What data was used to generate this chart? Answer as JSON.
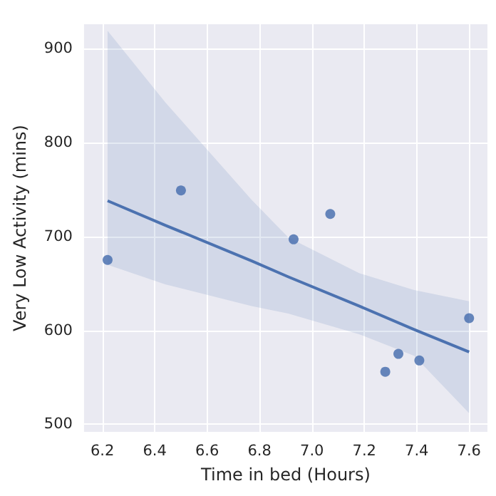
{
  "chart_data": {
    "type": "scatter",
    "xlabel": "Time in bed (Hours)",
    "ylabel": "Very Low Activity (mins)",
    "xlim": [
      6.13,
      7.67
    ],
    "xticks": [
      6.2,
      6.4,
      6.6,
      6.8,
      {
        "value": 7,
        "label": "7.0"
      },
      7.2,
      7.4,
      7.6
    ],
    "ylim": [
      492,
      926
    ],
    "yticks": [
      500,
      600,
      700,
      800,
      900
    ],
    "grid": true,
    "series": [
      {
        "color": "#4c72b0",
        "marker": "circle",
        "x": [
          6.22,
          6.5,
          6.93,
          7.07,
          7.28,
          7.33,
          7.41,
          7.6
        ],
        "values": [
          675,
          749,
          697,
          724,
          556,
          575,
          568,
          613
        ]
      },
      {
        "type": "line",
        "marker": "none",
        "color": "#4c72b0",
        "x": [
          6.22,
          6.44,
          6.77,
          6.91,
          7.18,
          7.39,
          7.6
        ],
        "values": [
          738,
          712,
          674,
          657,
          626,
          601,
          577
        ],
        "lower": [
          670,
          649,
          626,
          618,
          596,
          573,
          512
        ],
        "upper": [
          919,
          843,
          739,
          699,
          661,
          643,
          631
        ]
      }
    ]
  }
}
